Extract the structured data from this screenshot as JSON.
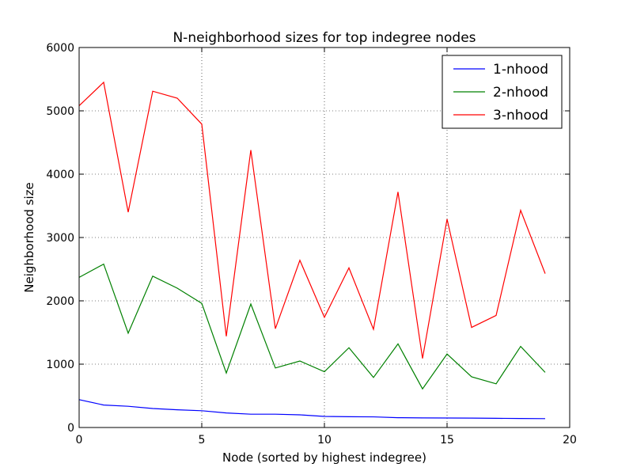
{
  "chart_data": {
    "type": "line",
    "title": "N-neighborhood sizes for top indegree nodes",
    "xlabel": "Node (sorted by highest indegree)",
    "ylabel": "Neighborhood size",
    "xlim": [
      0,
      20
    ],
    "ylim": [
      0,
      6000
    ],
    "xticks": [
      0,
      5,
      10,
      15,
      20
    ],
    "yticks": [
      0,
      1000,
      2000,
      3000,
      4000,
      5000,
      6000
    ],
    "grid": true,
    "legend_position": "top-right",
    "x": [
      0,
      1,
      2,
      3,
      4,
      5,
      6,
      7,
      8,
      9,
      10,
      11,
      12,
      13,
      14,
      15,
      16,
      17,
      18,
      19
    ],
    "series": [
      {
        "name": "1-nhood",
        "color": "#0000ff",
        "values": [
          440,
          355,
          335,
          300,
          280,
          265,
          230,
          210,
          210,
          200,
          175,
          170,
          168,
          155,
          152,
          150,
          148,
          145,
          142,
          140
        ]
      },
      {
        "name": "2-nhood",
        "color": "#008000",
        "values": [
          2370,
          2580,
          1490,
          2390,
          2200,
          1960,
          860,
          1950,
          940,
          1050,
          880,
          1260,
          790,
          1320,
          610,
          1160,
          800,
          690,
          1280,
          870
        ]
      },
      {
        "name": "3-nhood",
        "color": "#ff0000",
        "values": [
          5080,
          5450,
          3400,
          5310,
          5200,
          4790,
          1440,
          4380,
          1560,
          2640,
          1740,
          2520,
          1550,
          3720,
          1090,
          3290,
          1580,
          1770,
          3430,
          2430
        ]
      }
    ]
  }
}
